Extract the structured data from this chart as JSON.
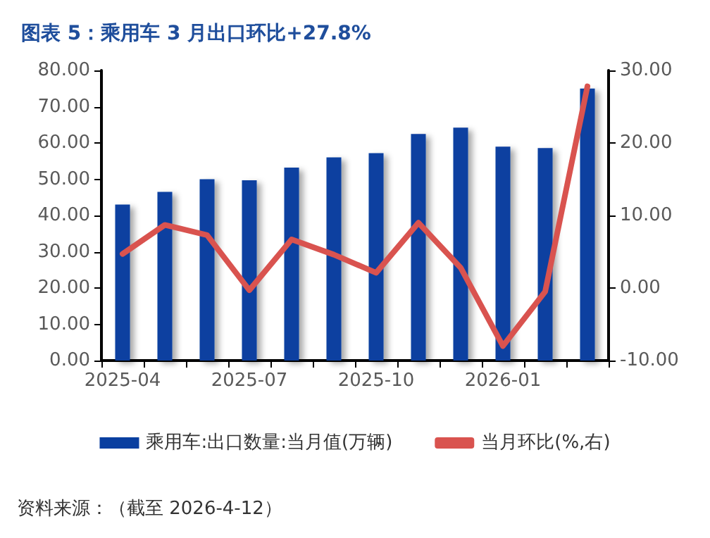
{
  "chart_data": {
    "type": "bar",
    "title": "图表 5：乘用车 3 月出口环比+27.8%",
    "categories": [
      "2025-04",
      null,
      null,
      "2025-07",
      null,
      null,
      "2025-10",
      null,
      null,
      "2026-01",
      null,
      null
    ],
    "series": [
      {
        "name": "乘用车:出口数量:当月值(万辆)",
        "color": "#0a3fa0",
        "values": [
          43,
          46.5,
          50,
          49.7,
          53.2,
          56,
          57.2,
          62.5,
          64.2,
          59,
          58.6,
          75
        ]
      },
      {
        "name": "当月环比(%,右)",
        "type": "line",
        "axis": "y2",
        "color": "#d9534f",
        "values": [
          4.7,
          8.7,
          7.3,
          -0.3,
          6.7,
          4.6,
          2.1,
          9,
          2.8,
          -8,
          -0.5,
          27.8
        ]
      }
    ],
    "ylim": [
      0,
      80
    ],
    "yticks": [
      {
        "value": 0,
        "label": "0.00"
      },
      {
        "value": 10,
        "label": "10.00"
      },
      {
        "value": 20,
        "label": "20.00"
      },
      {
        "value": 30,
        "label": "30.00"
      },
      {
        "value": 40,
        "label": "40.00"
      },
      {
        "value": 50,
        "label": "50.00"
      },
      {
        "value": 60,
        "label": "60.00"
      },
      {
        "value": 70,
        "label": "70.00"
      },
      {
        "value": 80,
        "label": "80.00"
      }
    ],
    "y2lim": [
      -10,
      30
    ],
    "y2ticks": [
      {
        "value": -10,
        "label": "-10.00"
      },
      {
        "value": 0,
        "label": "0.00"
      },
      {
        "value": 10,
        "label": "10.00"
      },
      {
        "value": 20,
        "label": "20.00"
      },
      {
        "value": 30,
        "label": "30.00"
      }
    ],
    "grid": false,
    "legend": "bottom",
    "marker": "none",
    "annotations": [
      "资料来源：（截至 2026-4-12）"
    ]
  }
}
